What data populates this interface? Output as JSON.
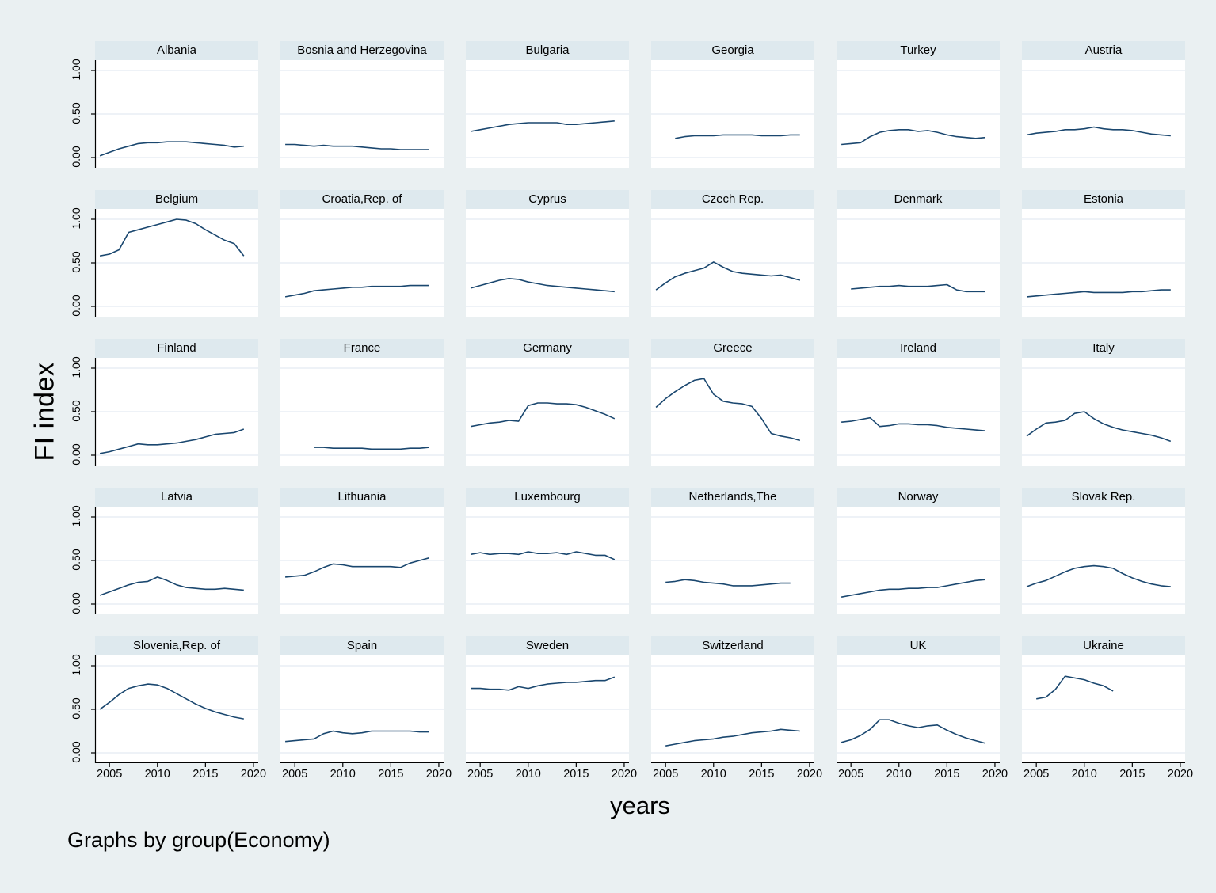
{
  "figure": {
    "ylabel": "FI index",
    "xlabel": "years",
    "note": "Graphs by group(Economy)"
  },
  "colors": {
    "background": "#eaf0f2",
    "panel_header": "#dee9ee",
    "plot_background": "#ffffff",
    "gridline": "#e3ebf2",
    "line": "#1a476f",
    "axis": "#000000"
  },
  "chart_data": {
    "type": "line",
    "title": "",
    "xlabel": "years",
    "ylabel": "FI index",
    "layout": {
      "rows": 5,
      "cols": 6,
      "x_range": [
        2003.5,
        2020.5
      ],
      "y_range": [
        0,
        1
      ],
      "x_tick_values": [
        2005,
        2010,
        2015,
        2020
      ],
      "x_tick_labels": [
        "2005",
        "2010",
        "2015",
        "2020"
      ],
      "y_tick_values": [
        1.0,
        0.5,
        0.0
      ],
      "y_tick_labels": [
        "1.00",
        "0.50",
        "0.00"
      ],
      "grid": true,
      "legend": "none"
    },
    "series": [
      {
        "name": "Albania",
        "start_year": 2004,
        "values": [
          0.02,
          0.06,
          0.1,
          0.13,
          0.16,
          0.17,
          0.17,
          0.18,
          0.18,
          0.18,
          0.17,
          0.16,
          0.15,
          0.14,
          0.12,
          0.13
        ]
      },
      {
        "name": "Bosnia and Herzegovina",
        "start_year": 2004,
        "values": [
          0.15,
          0.15,
          0.14,
          0.13,
          0.14,
          0.13,
          0.13,
          0.13,
          0.12,
          0.11,
          0.1,
          0.1,
          0.09,
          0.09,
          0.09,
          0.09
        ]
      },
      {
        "name": "Bulgaria",
        "start_year": 2004,
        "values": [
          0.3,
          0.32,
          0.34,
          0.36,
          0.38,
          0.39,
          0.4,
          0.4,
          0.4,
          0.4,
          0.38,
          0.38,
          0.39,
          0.4,
          0.41,
          0.42
        ]
      },
      {
        "name": "Georgia",
        "start_year": 2006,
        "values": [
          0.22,
          0.24,
          0.25,
          0.25,
          0.25,
          0.26,
          0.26,
          0.26,
          0.26,
          0.25,
          0.25,
          0.25,
          0.26,
          0.26
        ]
      },
      {
        "name": "Turkey",
        "start_year": 2004,
        "values": [
          0.15,
          0.16,
          0.17,
          0.24,
          0.29,
          0.31,
          0.32,
          0.32,
          0.3,
          0.31,
          0.29,
          0.26,
          0.24,
          0.23,
          0.22,
          0.23
        ]
      },
      {
        "name": "Austria",
        "start_year": 2004,
        "values": [
          0.26,
          0.28,
          0.29,
          0.3,
          0.32,
          0.32,
          0.33,
          0.35,
          0.33,
          0.32,
          0.32,
          0.31,
          0.29,
          0.27,
          0.26,
          0.25
        ]
      },
      {
        "name": "Belgium",
        "start_year": 2004,
        "values": [
          0.58,
          0.6,
          0.65,
          0.85,
          0.88,
          0.91,
          0.94,
          0.97,
          1.0,
          0.99,
          0.95,
          0.88,
          0.82,
          0.76,
          0.72,
          0.58
        ]
      },
      {
        "name": "Croatia,Rep. of",
        "start_year": 2004,
        "values": [
          0.11,
          0.13,
          0.15,
          0.18,
          0.19,
          0.2,
          0.21,
          0.22,
          0.22,
          0.23,
          0.23,
          0.23,
          0.23,
          0.24,
          0.24,
          0.24
        ]
      },
      {
        "name": "Cyprus",
        "start_year": 2004,
        "values": [
          0.21,
          0.24,
          0.27,
          0.3,
          0.32,
          0.31,
          0.28,
          0.26,
          0.24,
          0.23,
          0.22,
          0.21,
          0.2,
          0.19,
          0.18,
          0.17
        ]
      },
      {
        "name": "Czech Rep.",
        "start_year": 2004,
        "values": [
          0.19,
          0.27,
          0.34,
          0.38,
          0.41,
          0.44,
          0.51,
          0.45,
          0.4,
          0.38,
          0.37,
          0.36,
          0.35,
          0.36,
          0.33,
          0.3
        ]
      },
      {
        "name": "Denmark",
        "start_year": 2005,
        "values": [
          0.2,
          0.21,
          0.22,
          0.23,
          0.23,
          0.24,
          0.23,
          0.23,
          0.23,
          0.24,
          0.25,
          0.19,
          0.17,
          0.17,
          0.17
        ]
      },
      {
        "name": "Estonia",
        "start_year": 2004,
        "values": [
          0.11,
          0.12,
          0.13,
          0.14,
          0.15,
          0.16,
          0.17,
          0.16,
          0.16,
          0.16,
          0.16,
          0.17,
          0.17,
          0.18,
          0.19,
          0.19
        ]
      },
      {
        "name": "Finland",
        "start_year": 2004,
        "values": [
          0.02,
          0.04,
          0.07,
          0.1,
          0.13,
          0.12,
          0.12,
          0.13,
          0.14,
          0.16,
          0.18,
          0.21,
          0.24,
          0.25,
          0.26,
          0.3
        ]
      },
      {
        "name": "France",
        "start_year": 2007,
        "values": [
          0.09,
          0.09,
          0.08,
          0.08,
          0.08,
          0.08,
          0.07,
          0.07,
          0.07,
          0.07,
          0.08,
          0.08,
          0.09
        ]
      },
      {
        "name": "Germany",
        "start_year": 2004,
        "values": [
          0.33,
          0.35,
          0.37,
          0.38,
          0.4,
          0.39,
          0.57,
          0.6,
          0.6,
          0.59,
          0.59,
          0.58,
          0.55,
          0.51,
          0.47,
          0.42
        ]
      },
      {
        "name": "Greece",
        "start_year": 2004,
        "values": [
          0.55,
          0.65,
          0.73,
          0.8,
          0.86,
          0.88,
          0.7,
          0.62,
          0.6,
          0.59,
          0.56,
          0.42,
          0.25,
          0.22,
          0.2,
          0.17
        ]
      },
      {
        "name": "Ireland",
        "start_year": 2004,
        "values": [
          0.38,
          0.39,
          0.41,
          0.43,
          0.33,
          0.34,
          0.36,
          0.36,
          0.35,
          0.35,
          0.34,
          0.32,
          0.31,
          0.3,
          0.29,
          0.28
        ]
      },
      {
        "name": "Italy",
        "start_year": 2004,
        "values": [
          0.22,
          0.3,
          0.37,
          0.38,
          0.4,
          0.48,
          0.5,
          0.42,
          0.36,
          0.32,
          0.29,
          0.27,
          0.25,
          0.23,
          0.2,
          0.16
        ]
      },
      {
        "name": "Latvia",
        "start_year": 2004,
        "values": [
          0.1,
          0.14,
          0.18,
          0.22,
          0.25,
          0.26,
          0.31,
          0.27,
          0.22,
          0.19,
          0.18,
          0.17,
          0.17,
          0.18,
          0.17,
          0.16
        ]
      },
      {
        "name": "Lithuania",
        "start_year": 2004,
        "values": [
          0.31,
          0.32,
          0.33,
          0.37,
          0.42,
          0.46,
          0.45,
          0.43,
          0.43,
          0.43,
          0.43,
          0.43,
          0.42,
          0.47,
          0.5,
          0.53
        ]
      },
      {
        "name": "Luxembourg",
        "start_year": 2004,
        "values": [
          0.57,
          0.59,
          0.57,
          0.58,
          0.58,
          0.57,
          0.6,
          0.58,
          0.58,
          0.59,
          0.57,
          0.6,
          0.58,
          0.56,
          0.56,
          0.51
        ]
      },
      {
        "name": "Netherlands,The",
        "start_year": 2005,
        "values": [
          0.25,
          0.26,
          0.28,
          0.27,
          0.25,
          0.24,
          0.23,
          0.21,
          0.21,
          0.21,
          0.22,
          0.23,
          0.24,
          0.24
        ]
      },
      {
        "name": "Norway",
        "start_year": 2004,
        "values": [
          0.08,
          0.1,
          0.12,
          0.14,
          0.16,
          0.17,
          0.17,
          0.18,
          0.18,
          0.19,
          0.19,
          0.21,
          0.23,
          0.25,
          0.27,
          0.28
        ]
      },
      {
        "name": "Slovak Rep.",
        "start_year": 2004,
        "values": [
          0.2,
          0.24,
          0.27,
          0.32,
          0.37,
          0.41,
          0.43,
          0.44,
          0.43,
          0.41,
          0.35,
          0.3,
          0.26,
          0.23,
          0.21,
          0.2
        ]
      },
      {
        "name": "Slovenia,Rep. of",
        "start_year": 2004,
        "values": [
          0.5,
          0.58,
          0.67,
          0.74,
          0.77,
          0.79,
          0.78,
          0.74,
          0.68,
          0.62,
          0.56,
          0.51,
          0.47,
          0.44,
          0.41,
          0.39
        ]
      },
      {
        "name": "Spain",
        "start_year": 2004,
        "values": [
          0.13,
          0.14,
          0.15,
          0.16,
          0.22,
          0.25,
          0.23,
          0.22,
          0.23,
          0.25,
          0.25,
          0.25,
          0.25,
          0.25,
          0.24,
          0.24
        ]
      },
      {
        "name": "Sweden",
        "start_year": 2004,
        "values": [
          0.74,
          0.74,
          0.73,
          0.73,
          0.72,
          0.76,
          0.74,
          0.77,
          0.79,
          0.8,
          0.81,
          0.81,
          0.82,
          0.83,
          0.83,
          0.87
        ]
      },
      {
        "name": "Switzerland",
        "start_year": 2005,
        "values": [
          0.08,
          0.1,
          0.12,
          0.14,
          0.15,
          0.16,
          0.18,
          0.19,
          0.21,
          0.23,
          0.24,
          0.25,
          0.27,
          0.26,
          0.25
        ]
      },
      {
        "name": "UK",
        "start_year": 2004,
        "values": [
          0.12,
          0.15,
          0.2,
          0.27,
          0.38,
          0.38,
          0.34,
          0.31,
          0.29,
          0.31,
          0.32,
          0.26,
          0.21,
          0.17,
          0.14,
          0.11
        ]
      },
      {
        "name": "Ukraine",
        "start_year": 2005,
        "values": [
          0.62,
          0.64,
          0.73,
          0.88,
          0.86,
          0.84,
          0.8,
          0.77,
          0.71
        ]
      }
    ]
  }
}
